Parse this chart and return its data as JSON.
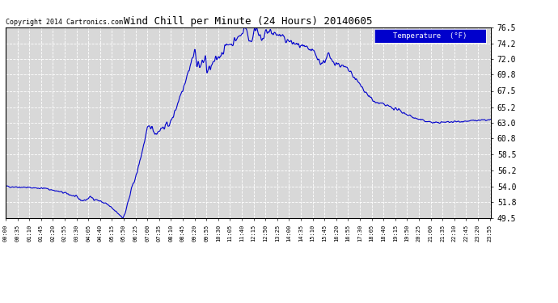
{
  "title": "Wind Chill per Minute (24 Hours) 20140605",
  "copyright_text": "Copyright 2014 Cartronics.com",
  "legend_label": "Temperature  (°F)",
  "legend_bg": "#0000cc",
  "legend_text_color": "#ffffff",
  "line_color": "#0000cc",
  "bg_color": "#ffffff",
  "plot_bg_color": "#d8d8d8",
  "grid_color": "#ffffff",
  "yticks": [
    49.5,
    51.8,
    54.0,
    56.2,
    58.5,
    60.8,
    63.0,
    65.2,
    67.5,
    69.8,
    72.0,
    74.2,
    76.5
  ],
  "ymin": 49.5,
  "ymax": 76.5,
  "xtick_interval_minutes": 35,
  "total_minutes": 1440
}
